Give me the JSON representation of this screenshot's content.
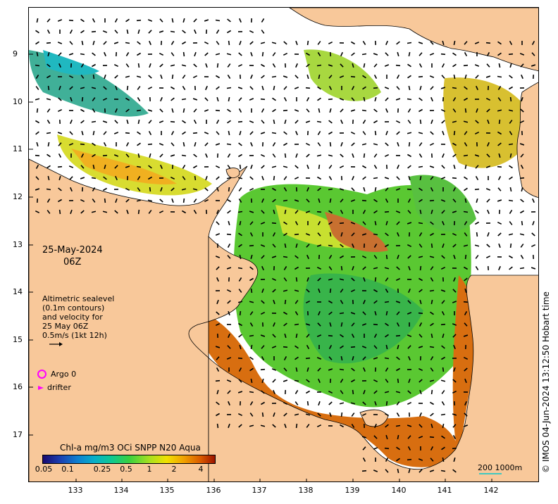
{
  "map": {
    "date": "25-May-2024",
    "time": "06Z",
    "legend_lines": [
      "Altimetric sealevel",
      "(0.1m contours)",
      "and velocity for",
      "25 May 06Z",
      "0.5m/s (1kt 12h)"
    ],
    "argo_label": "Argo 0",
    "drifter_label": "drifter",
    "colorbar_title": "Chl-a mg/m3 OCi SNPP N20 Aqua",
    "colorbar_ticks": [
      "0.05",
      "0.1",
      "0.25",
      "0.5",
      "1",
      "2",
      "4"
    ],
    "scale_label": "200  1000m",
    "credit": "© IMOS 04-Jun-2024 13:12:50 Hobart time",
    "lat_ticks": [
      "9",
      "10",
      "11",
      "12",
      "13",
      "14",
      "15",
      "16",
      "17"
    ],
    "lon_ticks": [
      "133",
      "134",
      "135",
      "136",
      "137",
      "138",
      "139",
      "140",
      "141",
      "142"
    ],
    "colors": {
      "land": "#f8c89a",
      "ocean_no_data": "#ffffff",
      "argo": "#ff00ff",
      "drifter": "#ff00ff",
      "arrows": "#000000"
    }
  }
}
